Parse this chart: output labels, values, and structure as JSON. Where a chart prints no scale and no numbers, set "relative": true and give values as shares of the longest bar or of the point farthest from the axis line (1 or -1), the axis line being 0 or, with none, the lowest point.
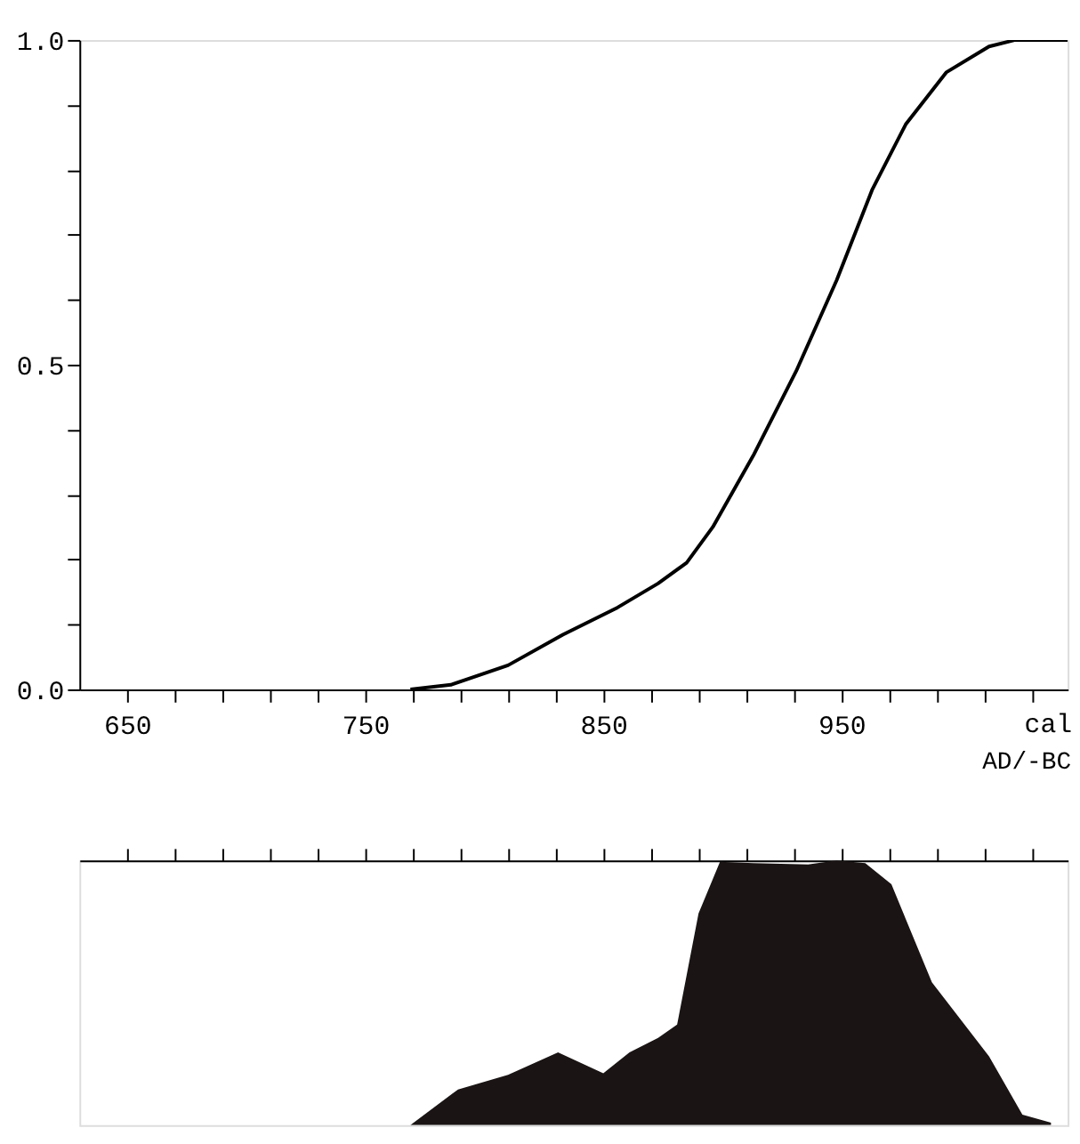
{
  "chart_data": [
    {
      "type": "line",
      "xlabel": "cal",
      "annotations": [
        "AD/-BC"
      ],
      "color": "#000000",
      "x": [
        769,
        786,
        810,
        833,
        856,
        873,
        885,
        896,
        913,
        931,
        948,
        963,
        977,
        994,
        1012,
        1023,
        1045
      ],
      "values": [
        0,
        0.007,
        0.037,
        0.084,
        0.126,
        0.163,
        0.195,
        0.25,
        0.36,
        0.49,
        0.63,
        0.77,
        0.87,
        0.95,
        0.99,
        1.0,
        1.0
      ],
      "xlim": [
        630,
        1045
      ],
      "ylim": [
        0,
        1.0
      ],
      "xticks": [
        650,
        {
          "value": 670,
          "label": null
        },
        {
          "value": 690,
          "label": null
        },
        {
          "value": 710,
          "label": null
        },
        {
          "value": 730,
          "label": null
        },
        750,
        {
          "value": 770,
          "label": null
        },
        {
          "value": 790,
          "label": null
        },
        {
          "value": 810,
          "label": null
        },
        {
          "value": 830,
          "label": null
        },
        850,
        {
          "value": 870,
          "label": null
        },
        {
          "value": 890,
          "label": null
        },
        {
          "value": 910,
          "label": null
        },
        {
          "value": 930,
          "label": null
        },
        950,
        {
          "value": 970,
          "label": null
        },
        {
          "value": 990,
          "label": null
        },
        {
          "value": 1010,
          "label": null
        },
        {
          "value": 1030,
          "label": null
        }
      ],
      "yticks": [
        {
          "value": 0,
          "label": "0.0"
        },
        {
          "value": 0.1,
          "label": null
        },
        {
          "value": 0.2,
          "label": null
        },
        {
          "value": 0.3,
          "label": null
        },
        {
          "value": 0.4,
          "label": null
        },
        {
          "value": 0.5,
          "label": "0.5"
        },
        {
          "value": 0.6,
          "label": null
        },
        {
          "value": 0.7,
          "label": null
        },
        {
          "value": 0.8,
          "label": null
        },
        {
          "value": 0.9,
          "label": null
        },
        {
          "value": 1.0,
          "label": "1.0"
        }
      ],
      "grid": false,
      "marker": "none",
      "line_style": "solid"
    },
    {
      "type": "area",
      "relative": true,
      "tick_labels": false,
      "color": "#1a1414",
      "x": [
        769,
        789,
        810,
        831,
        850,
        861,
        873,
        881,
        890,
        899,
        913,
        936,
        948,
        960,
        971,
        988,
        1012,
        1026,
        1038
      ],
      "values": [
        0,
        0.135,
        0.19,
        0.275,
        0.196,
        0.275,
        0.33,
        0.38,
        0.8,
        0.995,
        0.99,
        0.985,
        1.0,
        0.99,
        0.91,
        0.54,
        0.26,
        0.04,
        0.01
      ],
      "xlim": [
        630,
        1045
      ],
      "xticks": [
        {
          "value": 650,
          "label": null
        },
        {
          "value": 670,
          "label": null
        },
        {
          "value": 690,
          "label": null
        },
        {
          "value": 710,
          "label": null
        },
        {
          "value": 730,
          "label": null
        },
        {
          "value": 750,
          "label": null
        },
        {
          "value": 770,
          "label": null
        },
        {
          "value": 790,
          "label": null
        },
        {
          "value": 810,
          "label": null
        },
        {
          "value": 830,
          "label": null
        },
        {
          "value": 850,
          "label": null
        },
        {
          "value": 870,
          "label": null
        },
        {
          "value": 890,
          "label": null
        },
        {
          "value": 910,
          "label": null
        },
        {
          "value": 930,
          "label": null
        },
        {
          "value": 950,
          "label": null
        },
        {
          "value": 970,
          "label": null
        },
        {
          "value": 990,
          "label": null
        },
        {
          "value": 1010,
          "label": null
        },
        {
          "value": 1030,
          "label": null
        }
      ],
      "grid": false
    }
  ]
}
